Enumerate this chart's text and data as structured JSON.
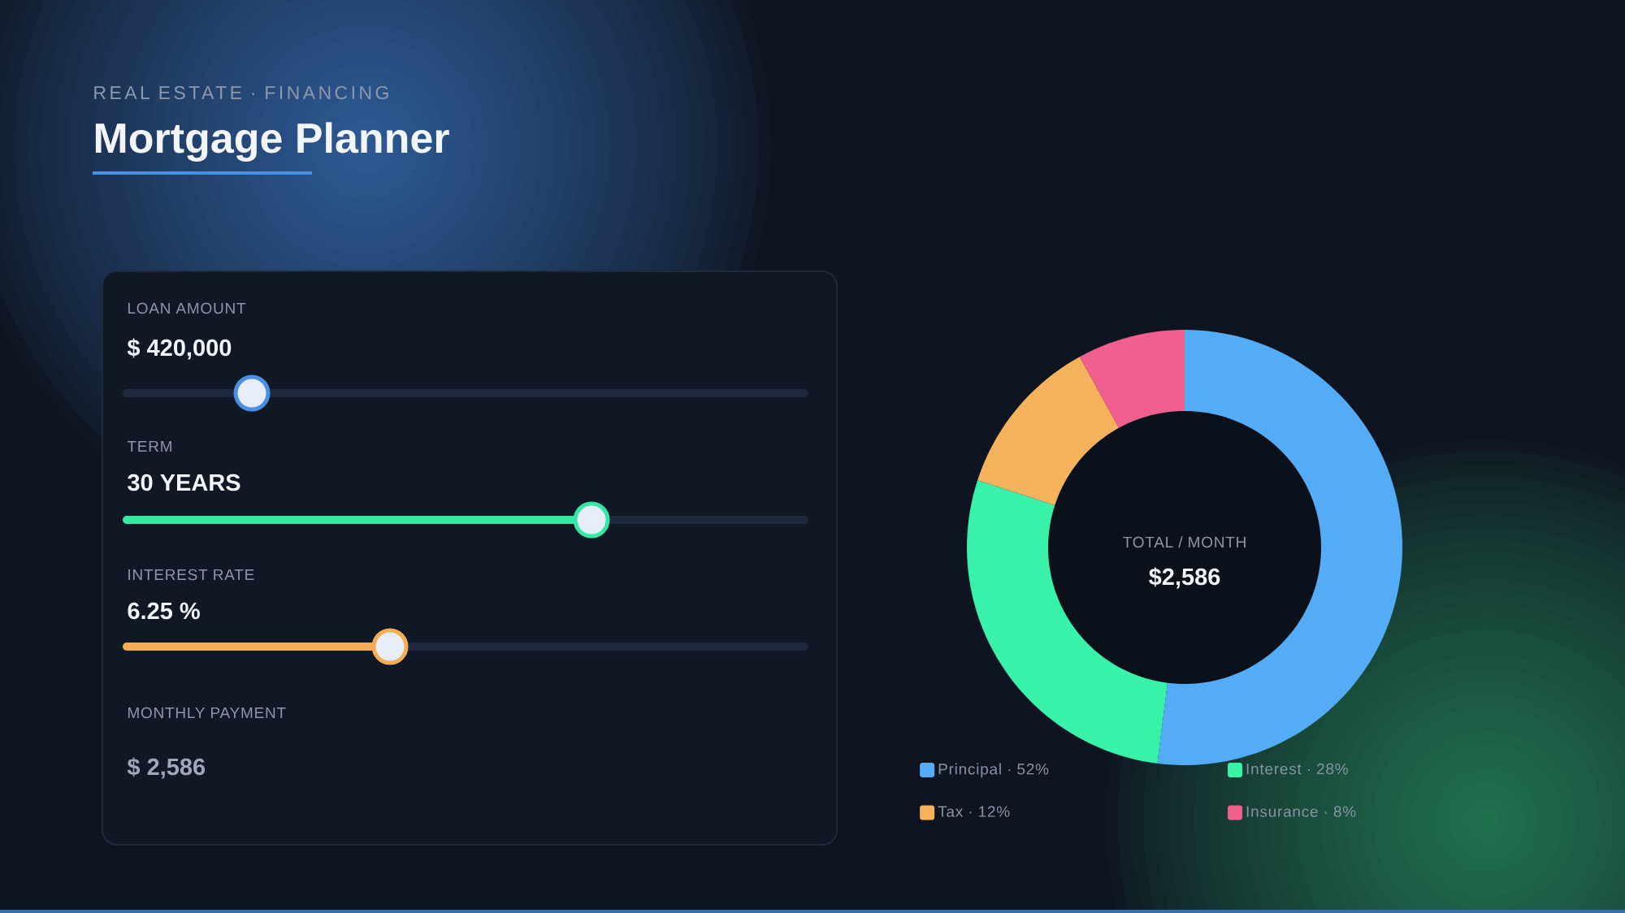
{
  "chart_data": [
    {
      "type": "other",
      "title": "Mortgage Planner",
      "subtitle": "REAL ESTATE · FINANCING",
      "annotations": [
        "LOAN AMOUNT",
        "$ 420,000",
        "TERM",
        "30 YEARS",
        "INTEREST RATE",
        "6.25 %",
        "MONTHLY PAYMENT",
        "$ 2,586"
      ]
    },
    {
      "type": "donut",
      "categories": [
        "Principal · 52%",
        "Interest · 28%",
        "Tax · 12%",
        "Insurance · 8%"
      ],
      "values": [
        52,
        28,
        12,
        8
      ],
      "colors": [
        "#55acf6",
        "#38f2a9",
        "#f6b15c",
        "#f0608e"
      ],
      "legend": "bottom",
      "annotations": [
        "TOTAL / MONTH",
        "$2,586"
      ]
    }
  ]
}
